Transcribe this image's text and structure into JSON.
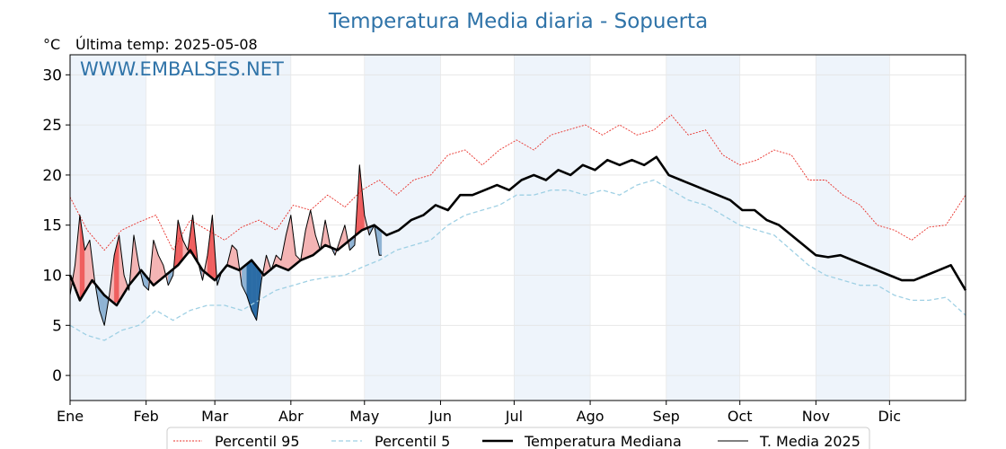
{
  "chart_data": {
    "type": "line",
    "title": "Temperatura Media diaria - Sopuerta",
    "unit_label": "°C",
    "last_temp_label": "Última temp: 2025-05-08",
    "watermark": "WWW.EMBALSES.NET",
    "xlabel": "",
    "ylabel": "",
    "ylim": [
      -2.5,
      32
    ],
    "yticks": [
      0,
      5,
      10,
      15,
      20,
      25,
      30
    ],
    "xlim": [
      1,
      366
    ],
    "months": [
      {
        "label": "Ene",
        "day": 1
      },
      {
        "label": "Feb",
        "day": 32
      },
      {
        "label": "Mar",
        "day": 60
      },
      {
        "label": "Abr",
        "day": 91
      },
      {
        "label": "May",
        "day": 121
      },
      {
        "label": "Jun",
        "day": 152
      },
      {
        "label": "Jul",
        "day": 182
      },
      {
        "label": "Ago",
        "day": 213
      },
      {
        "label": "Sep",
        "day": 244
      },
      {
        "label": "Oct",
        "day": 274
      },
      {
        "label": "Nov",
        "day": 305
      },
      {
        "label": "Dic",
        "day": 335
      }
    ],
    "grid": true,
    "legend_position": "bottom",
    "colors": {
      "p95": "#e8302a",
      "p5": "#9fd0e4",
      "median": "#000000",
      "current": "#000000",
      "above_fill": "#f4b4b4",
      "above_fill_strong": "#ef5f5f",
      "below_fill": "#8fb3d4",
      "below_fill_strong": "#2b6ca6",
      "band": "#eef4fb",
      "title": "#2f73a8"
    },
    "series": [
      {
        "key": "p95",
        "name": "Percentil 95",
        "x": [
          1,
          8,
          15,
          22,
          29,
          36,
          43,
          50,
          57,
          64,
          71,
          78,
          85,
          92,
          99,
          106,
          113,
          120,
          127,
          134,
          141,
          148,
          155,
          162,
          169,
          176,
          183,
          190,
          197,
          204,
          211,
          218,
          225,
          232,
          239,
          246,
          253,
          260,
          267,
          274,
          281,
          288,
          295,
          302,
          309,
          316,
          323,
          330,
          337,
          344,
          351,
          358,
          366
        ],
        "y": [
          17.8,
          14.5,
          12.5,
          14.5,
          15.3,
          16.0,
          12.5,
          15.5,
          14.5,
          13.5,
          14.8,
          15.5,
          14.5,
          17.0,
          16.5,
          18.0,
          16.8,
          18.5,
          19.5,
          18.0,
          19.5,
          20.0,
          22.0,
          22.5,
          21.0,
          22.5,
          23.5,
          22.5,
          24.0,
          24.5,
          25.0,
          24.0,
          25.0,
          24.0,
          24.5,
          26.0,
          24.0,
          24.5,
          22.0,
          21.0,
          21.5,
          22.5,
          22.0,
          19.5,
          19.5,
          18.0,
          17.0,
          15.0,
          14.5,
          13.5,
          14.8,
          15.0,
          18.0
        ]
      },
      {
        "key": "p5",
        "name": "Percentil 5",
        "x": [
          1,
          8,
          15,
          22,
          29,
          36,
          43,
          50,
          57,
          64,
          71,
          78,
          85,
          92,
          99,
          106,
          113,
          120,
          127,
          134,
          141,
          148,
          155,
          162,
          169,
          176,
          183,
          190,
          197,
          204,
          211,
          218,
          225,
          232,
          239,
          246,
          253,
          260,
          267,
          274,
          281,
          288,
          295,
          302,
          309,
          316,
          323,
          330,
          337,
          344,
          351,
          358,
          366
        ],
        "y": [
          5.0,
          4.0,
          3.5,
          4.5,
          5.0,
          6.5,
          5.5,
          6.5,
          7.0,
          7.0,
          6.5,
          7.5,
          8.5,
          9.0,
          9.5,
          9.8,
          10.0,
          10.8,
          11.5,
          12.5,
          13.0,
          13.5,
          15.0,
          16.0,
          16.5,
          17.0,
          18.0,
          18.0,
          18.5,
          18.5,
          18.0,
          18.5,
          18.0,
          19.0,
          19.5,
          18.5,
          17.5,
          17.0,
          16.0,
          15.0,
          14.5,
          14.0,
          12.5,
          11.0,
          10.0,
          9.5,
          9.0,
          9.0,
          8.0,
          7.5,
          7.5,
          7.8,
          6.0
        ]
      },
      {
        "key": "median",
        "name": "Temperatura Mediana",
        "x": [
          1,
          5,
          10,
          15,
          20,
          25,
          30,
          35,
          40,
          45,
          50,
          55,
          60,
          65,
          70,
          75,
          80,
          85,
          90,
          95,
          100,
          105,
          110,
          115,
          120,
          125,
          130,
          135,
          140,
          145,
          150,
          155,
          160,
          165,
          170,
          175,
          180,
          185,
          190,
          195,
          200,
          205,
          210,
          215,
          220,
          225,
          230,
          235,
          240,
          245,
          250,
          255,
          260,
          265,
          270,
          275,
          280,
          285,
          290,
          295,
          300,
          305,
          310,
          315,
          320,
          325,
          330,
          335,
          340,
          345,
          350,
          355,
          360,
          366
        ],
        "y": [
          10.0,
          7.5,
          9.5,
          8.0,
          7.0,
          9.0,
          10.5,
          9.0,
          10.0,
          11.0,
          12.5,
          10.5,
          9.5,
          11.0,
          10.5,
          11.5,
          10.0,
          11.0,
          10.5,
          11.5,
          12.0,
          13.0,
          12.5,
          13.5,
          14.5,
          15.0,
          14.0,
          14.5,
          15.5,
          16.0,
          17.0,
          16.5,
          18.0,
          18.0,
          18.5,
          19.0,
          18.5,
          19.5,
          20.0,
          19.5,
          20.5,
          20.0,
          21.0,
          20.5,
          21.5,
          21.0,
          21.5,
          21.0,
          21.8,
          20.0,
          19.5,
          19.0,
          18.5,
          18.0,
          17.5,
          16.5,
          16.5,
          15.5,
          15.0,
          14.0,
          13.0,
          12.0,
          11.8,
          12.0,
          11.5,
          11.0,
          10.5,
          10.0,
          9.5,
          9.5,
          10.0,
          10.5,
          11.0,
          8.5
        ]
      },
      {
        "key": "current",
        "name": "T. Media 2025",
        "x": [
          1,
          3,
          5,
          7,
          9,
          11,
          13,
          15,
          17,
          19,
          21,
          23,
          25,
          27,
          29,
          31,
          33,
          35,
          37,
          39,
          41,
          43,
          45,
          47,
          49,
          51,
          53,
          55,
          57,
          59,
          61,
          63,
          65,
          67,
          69,
          71,
          73,
          75,
          77,
          79,
          81,
          83,
          85,
          87,
          89,
          91,
          93,
          95,
          97,
          99,
          101,
          103,
          105,
          107,
          109,
          111,
          113,
          115,
          117,
          119,
          121,
          123,
          125,
          127,
          128
        ],
        "y": [
          8.0,
          11.0,
          16.0,
          12.5,
          13.5,
          9.5,
          6.5,
          5.0,
          8.0,
          12.0,
          14.0,
          10.0,
          8.5,
          14.0,
          11.0,
          9.0,
          8.5,
          13.5,
          12.0,
          11.0,
          9.0,
          10.0,
          15.5,
          13.5,
          12.5,
          16.0,
          11.5,
          9.5,
          12.0,
          16.0,
          9.0,
          10.5,
          11.0,
          13.0,
          12.5,
          9.0,
          8.0,
          6.5,
          5.5,
          9.5,
          12.0,
          10.5,
          12.0,
          11.5,
          14.0,
          16.0,
          12.0,
          11.5,
          14.5,
          16.5,
          14.0,
          12.5,
          15.5,
          13.0,
          12.0,
          13.5,
          15.0,
          12.5,
          13.0,
          21.0,
          16.0,
          14.0,
          15.0,
          12.0,
          12.0
        ]
      }
    ]
  }
}
